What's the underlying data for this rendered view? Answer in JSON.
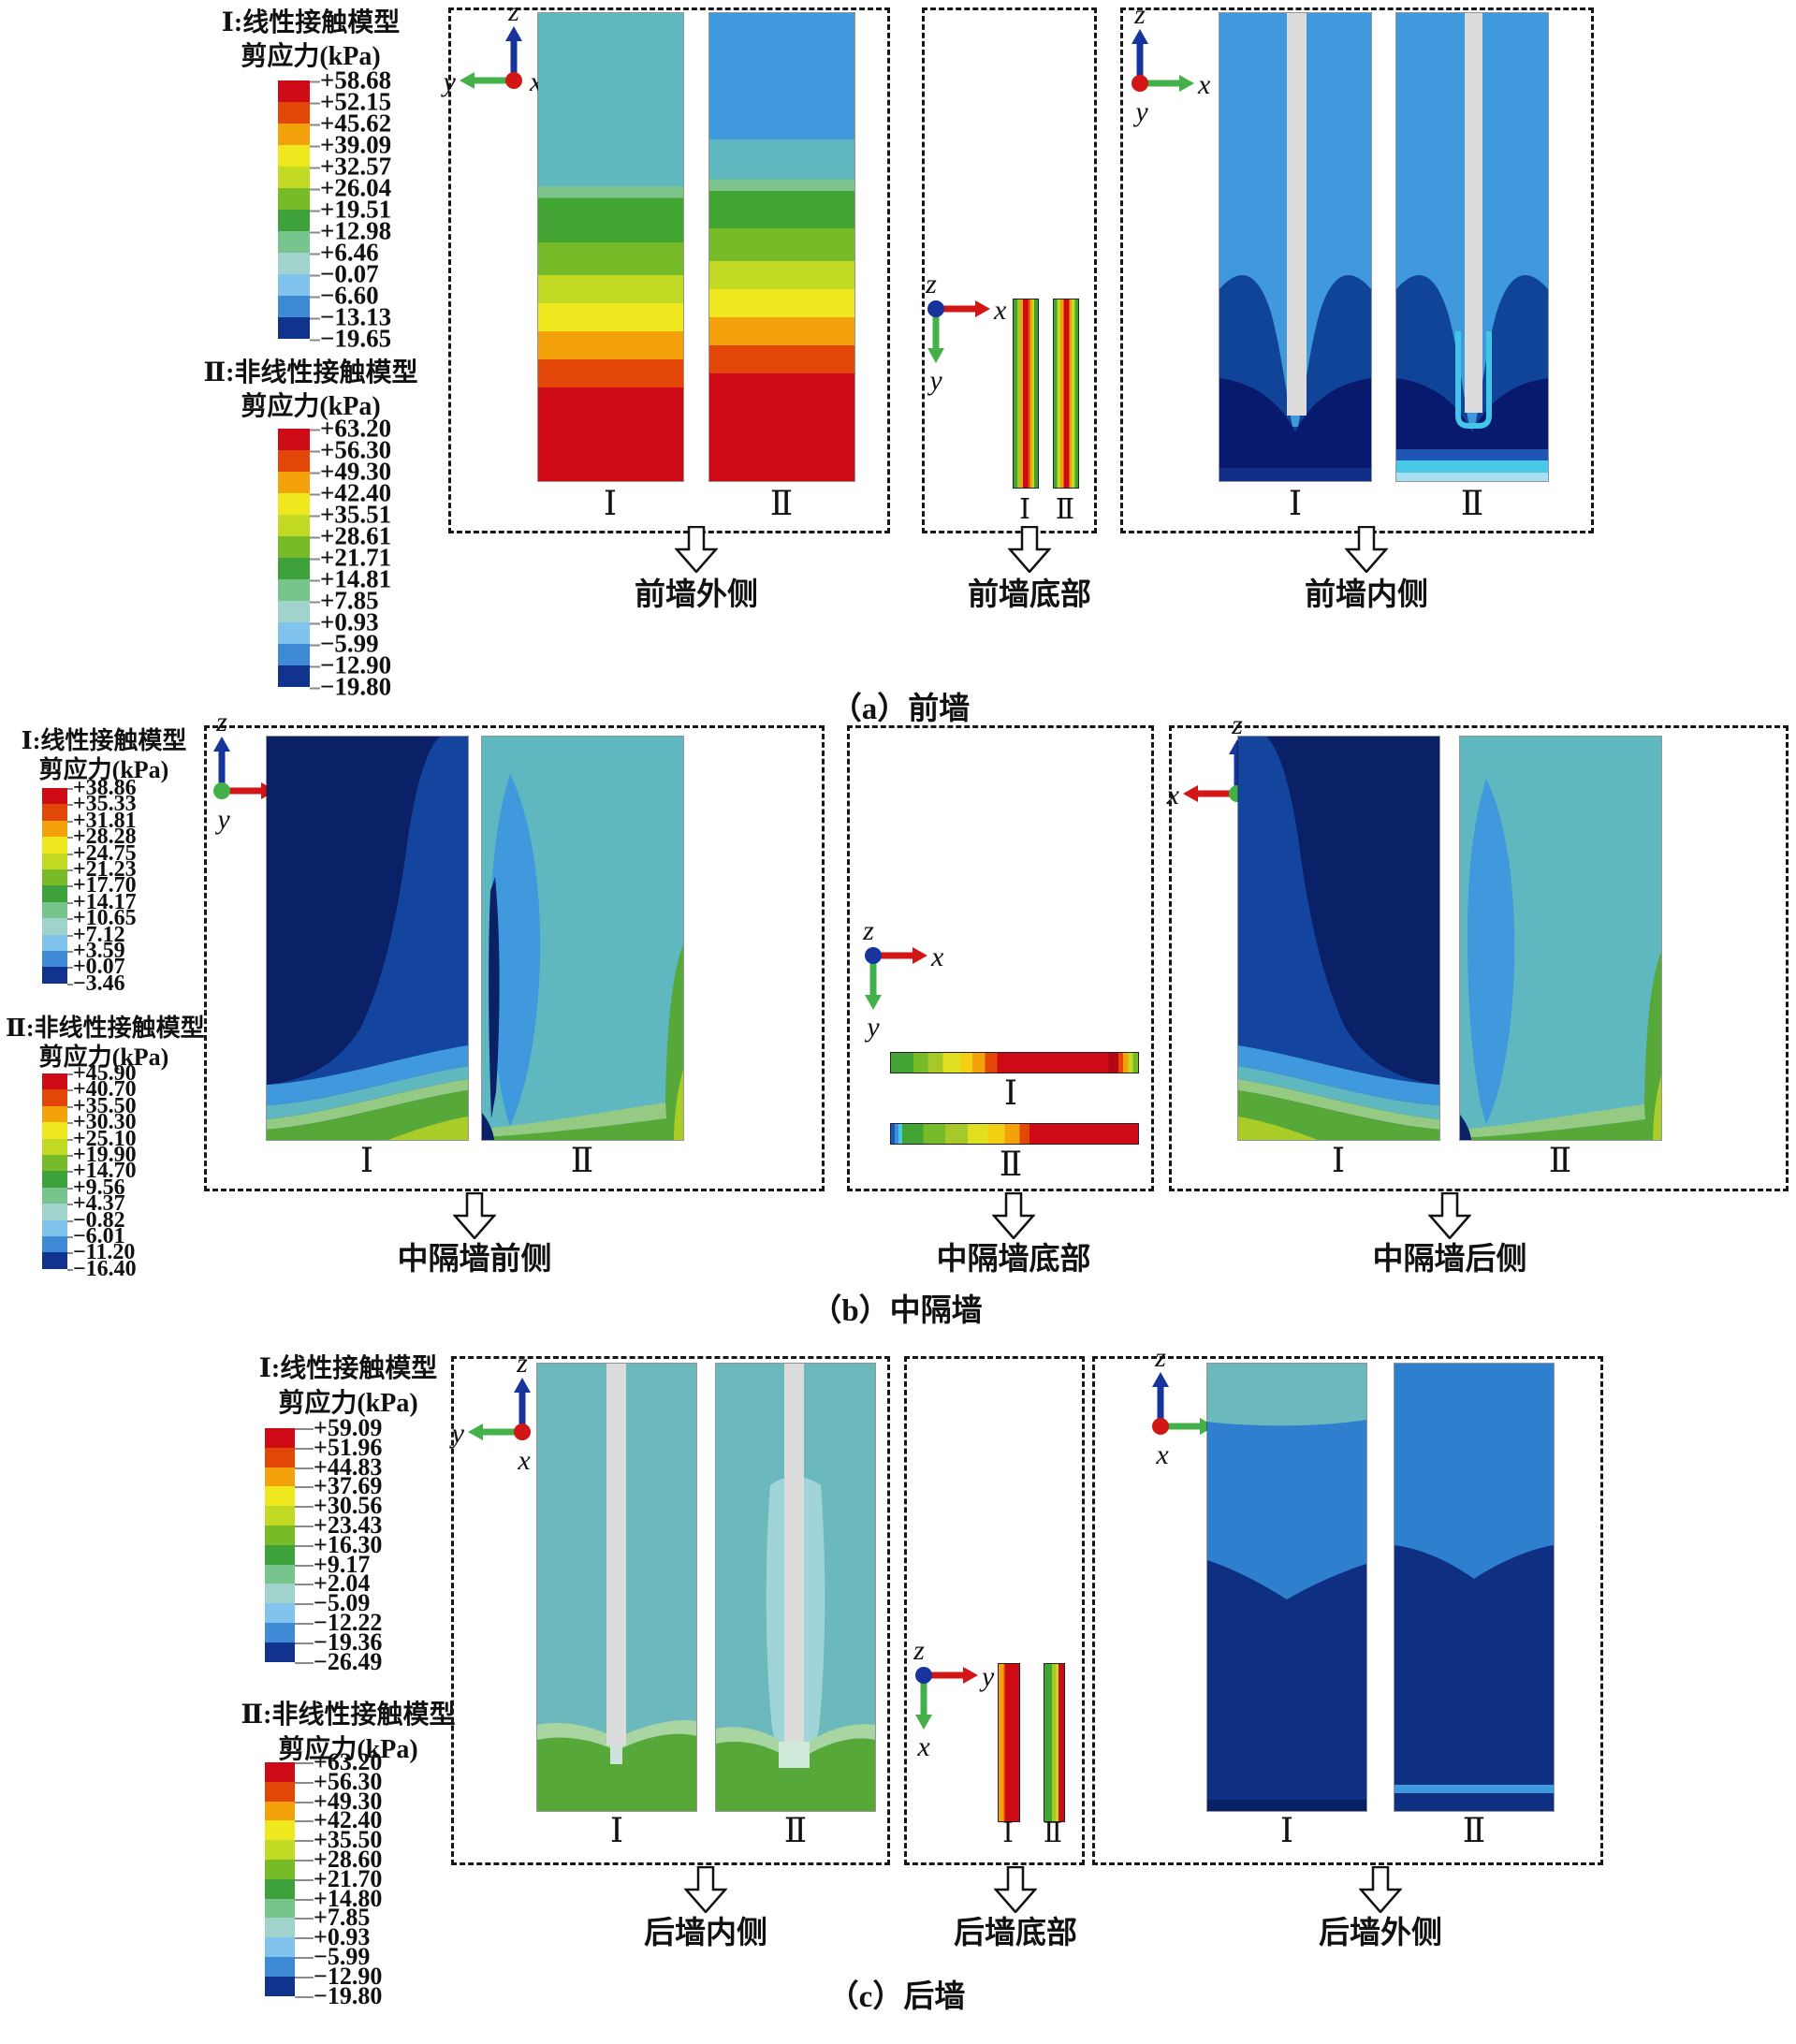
{
  "palette": [
    "#cd0a16",
    "#e24708",
    "#f4a20c",
    "#f0e81e",
    "#c3da24",
    "#77bc28",
    "#3da23c",
    "#77c48c",
    "#9fd3cb",
    "#80c3ec",
    "#3e8ad4",
    "#11338e"
  ],
  "roman": {
    "one": "Ⅰ",
    "two": "Ⅱ"
  },
  "colors": {
    "teal": "#6cb9bd",
    "light_blue": "#3f99dc",
    "medium_blue": "#0f4499",
    "navy": "#0a2168",
    "green": "#56a839",
    "yellow_green": "#a9cc29",
    "pale_green": "#94ca84",
    "cyan": "#49c8e8",
    "red": "#cd0a16",
    "orange": "#f4a20c",
    "wall_gap_gray": "#dcdcdc"
  },
  "legends": {
    "a1": {
      "model": "Ⅰ:线性接触模型",
      "unit": "剪应力(kPa)",
      "ticks": [
        "+58.68",
        "+52.15",
        "+45.62",
        "+39.09",
        "+32.57",
        "+26.04",
        "+19.51",
        "+12.98",
        "+6.46",
        "−0.07",
        "−6.60",
        "−13.13",
        "−19.65"
      ]
    },
    "a2": {
      "model": "Ⅱ:非线性接触模型",
      "unit": "剪应力(kPa)",
      "ticks": [
        "+63.20",
        "+56.30",
        "+49.30",
        "+42.40",
        "+35.51",
        "+28.61",
        "+21.71",
        "+14.81",
        "+7.85",
        "+0.93",
        "−5.99",
        "−12.90",
        "−19.80"
      ]
    },
    "b1": {
      "model": "Ⅰ:线性接触模型",
      "unit": "剪应力(kPa)",
      "ticks": [
        "+38.86",
        "+35.33",
        "+31.81",
        "+28.28",
        "+24.75",
        "+21.23",
        "+17.70",
        "+14.17",
        "+10.65",
        "+7.12",
        "+3.59",
        "+0.07",
        "−3.46"
      ]
    },
    "b2": {
      "model": "Ⅱ:非线性接触模型",
      "unit": "剪应力(kPa)",
      "ticks": [
        "+45.90",
        "+40.70",
        "+35.50",
        "+30.30",
        "+25.10",
        "+19.90",
        "+14.70",
        "+9.56",
        "+4.37",
        "−0.82",
        "−6.01",
        "−11.20",
        "−16.40"
      ]
    },
    "c1": {
      "model": "Ⅰ:线性接触模型",
      "unit": "剪应力(kPa)",
      "ticks": [
        "+59.09",
        "+51.96",
        "+44.83",
        "+37.69",
        "+30.56",
        "+23.43",
        "+16.30",
        "+9.17",
        "+2.04",
        "−5.09",
        "−12.22",
        "−19.36",
        "−26.49"
      ]
    },
    "c2": {
      "model": "Ⅱ:非线性接触模型",
      "unit": "剪应力(kPa)",
      "ticks": [
        "+63.20",
        "+56.30",
        "+49.30",
        "+42.40",
        "+35.50",
        "+28.60",
        "+21.70",
        "+14.80",
        "+7.85",
        "+0.93",
        "−5.99",
        "−12.90",
        "−19.80"
      ]
    }
  },
  "sections": {
    "a": {
      "caption": "（a）前墙",
      "left_label": "前墙外侧",
      "mid_label": "前墙底部",
      "right_label": "前墙内侧"
    },
    "b": {
      "caption": "（b）中隔墙",
      "left_label": "中隔墙前侧",
      "mid_label": "中隔墙底部",
      "right_label": "中隔墙后侧"
    },
    "c": {
      "caption": "（c）后墙",
      "left_label": "后墙内侧",
      "mid_label": "后墙底部",
      "right_label": "后墙外侧"
    }
  },
  "triads": {
    "a_left": {
      "up": {
        "label": "z",
        "color": "#16349c"
      },
      "left": {
        "label": "y",
        "color": "#43b049"
      },
      "origin": {
        "label": "x",
        "color": "#d21616",
        "pos": "right"
      }
    },
    "a_mid": {
      "right": {
        "label": "x",
        "color": "#d21616"
      },
      "down": {
        "label": "y",
        "color": "#43b049"
      },
      "origin": {
        "label": "z",
        "color": "#16349c",
        "pos": "top"
      }
    },
    "a_right": {
      "up": {
        "label": "z",
        "color": "#16349c"
      },
      "right": {
        "label": "x",
        "color": "#43b049"
      },
      "origin": {
        "label": "y",
        "color": "#d21616",
        "pos": "bottom"
      }
    },
    "b_left": {
      "up": {
        "label": "z",
        "color": "#16349c"
      },
      "right": {
        "label": "x",
        "color": "#d21616"
      },
      "origin": {
        "label": "y",
        "color": "#43b049",
        "pos": "bottom"
      }
    },
    "b_mid": {
      "right": {
        "label": "x",
        "color": "#d21616"
      },
      "down": {
        "label": "y",
        "color": "#43b049"
      },
      "origin": {
        "label": "z",
        "color": "#16349c",
        "pos": "top"
      }
    },
    "b_right": {
      "up": {
        "label": "z",
        "color": "#16349c"
      },
      "left": {
        "label": "x",
        "color": "#d21616"
      },
      "origin": {
        "label": "y",
        "color": "#43b049",
        "pos": "right"
      }
    },
    "c_left": {
      "up": {
        "label": "z",
        "color": "#16349c"
      },
      "left": {
        "label": "y",
        "color": "#43b049"
      },
      "origin": {
        "label": "x",
        "color": "#d21616",
        "pos": "bottom"
      }
    },
    "c_mid": {
      "right": {
        "label": "y",
        "color": "#d21616"
      },
      "down": {
        "label": "x",
        "color": "#43b049"
      },
      "origin": {
        "label": "z",
        "color": "#16349c",
        "pos": "top"
      }
    },
    "c_right": {
      "up": {
        "label": "z",
        "color": "#16349c"
      },
      "right": {
        "label": "y",
        "color": "#43b049"
      },
      "origin": {
        "label": "x",
        "color": "#d21616",
        "pos": "bottom"
      }
    }
  },
  "chart_data": [
    {
      "type": "heatmap",
      "panel": "（a）前墙",
      "views": [
        "前墙外侧",
        "前墙底部",
        "前墙内侧"
      ],
      "legend_position": "left",
      "grid": false,
      "series": [
        {
          "name": "Ⅰ:线性接触模型 剪应力(kPa)",
          "colorbar_ticks_kPa": [
            58.68,
            52.15,
            45.62,
            39.09,
            32.57,
            26.04,
            19.51,
            12.98,
            6.46,
            -0.07,
            -6.6,
            -13.13,
            -19.65
          ]
        },
        {
          "name": "Ⅱ:非线性接触模型 剪应力(kPa)",
          "colorbar_ticks_kPa": [
            63.2,
            56.3,
            49.3,
            42.4,
            35.51,
            28.61,
            21.71,
            14.81,
            7.85,
            0.93,
            -5.99,
            -12.9,
            -19.8
          ]
        }
      ]
    },
    {
      "type": "heatmap",
      "panel": "（b）中隔墙",
      "views": [
        "中隔墙前侧",
        "中隔墙底部",
        "中隔墙后侧"
      ],
      "legend_position": "left",
      "grid": false,
      "series": [
        {
          "name": "Ⅰ:线性接触模型 剪应力(kPa)",
          "colorbar_ticks_kPa": [
            38.86,
            35.33,
            31.81,
            28.28,
            24.75,
            21.23,
            17.7,
            14.17,
            10.65,
            7.12,
            3.59,
            0.07,
            -3.46
          ]
        },
        {
          "name": "Ⅱ:非线性接触模型 剪应力(kPa)",
          "colorbar_ticks_kPa": [
            45.9,
            40.7,
            35.5,
            30.3,
            25.1,
            19.9,
            14.7,
            9.56,
            4.37,
            -0.82,
            -6.01,
            -11.2,
            -16.4
          ]
        }
      ]
    },
    {
      "type": "heatmap",
      "panel": "（c）后墙",
      "views": [
        "后墙内侧",
        "后墙底部",
        "后墙外侧"
      ],
      "legend_position": "left",
      "grid": false,
      "series": [
        {
          "name": "Ⅰ:线性接触模型 剪应力(kPa)",
          "colorbar_ticks_kPa": [
            59.09,
            51.96,
            44.83,
            37.69,
            30.56,
            23.43,
            16.3,
            9.17,
            2.04,
            -5.09,
            -12.22,
            -19.36,
            -26.49
          ]
        },
        {
          "name": "Ⅱ:非线性接触模型 剪应力(kPa)",
          "colorbar_ticks_kPa": [
            63.2,
            56.3,
            49.3,
            42.4,
            35.5,
            28.6,
            21.7,
            14.8,
            7.85,
            0.93,
            -5.99,
            -12.9,
            -19.8
          ]
        }
      ]
    }
  ]
}
